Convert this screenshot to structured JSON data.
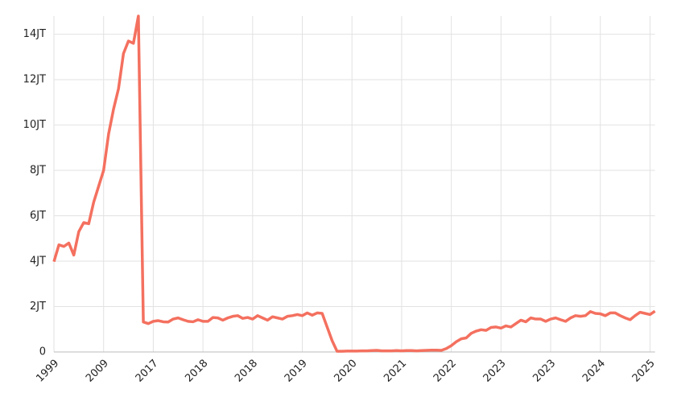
{
  "chart_data": {
    "type": "line",
    "categories": [
      "1999",
      null,
      null,
      null,
      null,
      null,
      null,
      null,
      null,
      null,
      "2009",
      null,
      null,
      null,
      null,
      null,
      null,
      null,
      null,
      null,
      "2017",
      null,
      null,
      null,
      null,
      null,
      null,
      null,
      null,
      null,
      "2018",
      null,
      null,
      null,
      null,
      null,
      null,
      null,
      null,
      null,
      "2018",
      null,
      null,
      null,
      null,
      null,
      null,
      null,
      null,
      null,
      "2019",
      null,
      null,
      null,
      null,
      null,
      null,
      null,
      null,
      null,
      "2020",
      null,
      null,
      null,
      null,
      null,
      null,
      null,
      null,
      null,
      "2021",
      null,
      null,
      null,
      null,
      null,
      null,
      null,
      null,
      null,
      "2022",
      null,
      null,
      null,
      null,
      null,
      null,
      null,
      null,
      null,
      "2023",
      null,
      null,
      null,
      null,
      null,
      null,
      null,
      null,
      null,
      "2023",
      null,
      null,
      null,
      null,
      null,
      null,
      null,
      null,
      null,
      "2024",
      null,
      null,
      null,
      null,
      null,
      null,
      null,
      null,
      null,
      "2025",
      null
    ],
    "series": [
      {
        "color": "#f4705f",
        "values": [
          3.98,
          4.72,
          4.65,
          4.8,
          4.27,
          5.3,
          5.7,
          5.65,
          6.6,
          7.3,
          8.0,
          9.6,
          10.7,
          11.6,
          13.15,
          13.7,
          13.6,
          14.8,
          1.32,
          1.25,
          1.35,
          1.38,
          1.33,
          1.32,
          1.45,
          1.5,
          1.42,
          1.35,
          1.33,
          1.42,
          1.35,
          1.35,
          1.52,
          1.5,
          1.4,
          1.5,
          1.57,
          1.6,
          1.48,
          1.52,
          1.45,
          1.6,
          1.5,
          1.4,
          1.55,
          1.5,
          1.45,
          1.57,
          1.6,
          1.65,
          1.6,
          1.72,
          1.62,
          1.72,
          1.7,
          1.1,
          0.5,
          0.03,
          0.03,
          0.04,
          0.04,
          0.04,
          0.05,
          0.05,
          0.06,
          0.07,
          0.05,
          0.05,
          0.05,
          0.06,
          0.05,
          0.06,
          0.06,
          0.05,
          0.06,
          0.07,
          0.08,
          0.08,
          0.07,
          0.15,
          0.28,
          0.45,
          0.58,
          0.62,
          0.82,
          0.92,
          0.98,
          0.95,
          1.08,
          1.1,
          1.05,
          1.15,
          1.1,
          1.25,
          1.4,
          1.33,
          1.5,
          1.45,
          1.45,
          1.35,
          1.45,
          1.5,
          1.42,
          1.35,
          1.5,
          1.6,
          1.57,
          1.6,
          1.78,
          1.7,
          1.68,
          1.6,
          1.72,
          1.72,
          1.6,
          1.5,
          1.42,
          1.6,
          1.75,
          1.7,
          1.65,
          1.8
        ]
      }
    ],
    "ylim": [
      0,
      14.8
    ],
    "yticks": [
      0,
      {
        "value": 2,
        "label": "2JT"
      },
      {
        "value": 4,
        "label": "4JT"
      },
      {
        "value": 6,
        "label": "6JT"
      },
      {
        "value": 8,
        "label": "8JT"
      },
      {
        "value": 10,
        "label": "10JT"
      },
      {
        "value": 12,
        "label": "12JT"
      },
      {
        "value": 14,
        "label": "14JT"
      }
    ],
    "grid": true
  }
}
